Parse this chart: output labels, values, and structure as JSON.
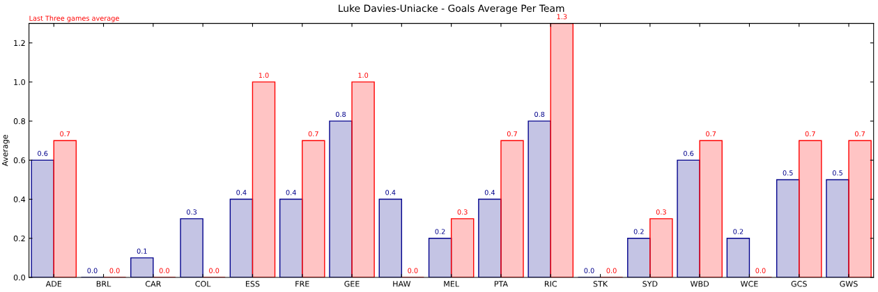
{
  "chart_data": {
    "type": "bar",
    "title": "Luke Davies-Uniacke - Goals Average Per Team",
    "ylabel": "Average",
    "categories": [
      "ADE",
      "BRL",
      "CAR",
      "COL",
      "ESS",
      "FRE",
      "GEE",
      "HAW",
      "MEL",
      "PTA",
      "RIC",
      "STK",
      "SYD",
      "WBD",
      "WCE",
      "GCS",
      "GWS"
    ],
    "series": [
      {
        "color": "#00008b",
        "values": [
          0.6,
          0.0,
          0.1,
          0.3,
          0.4,
          0.4,
          0.8,
          0.4,
          0.2,
          0.4,
          0.8,
          0.0,
          0.2,
          0.6,
          0.2,
          0.5,
          0.5
        ],
        "value_labels": [
          "0.6",
          "0.0",
          "0.1",
          "0.3",
          "0.4",
          "0.4",
          "0.8",
          "0.4",
          "0.2",
          "0.4",
          "0.8",
          "0.0",
          "0.2",
          "0.6",
          "0.2",
          "0.5",
          "0.5"
        ]
      },
      {
        "name": "Last Three games average",
        "color": "#ff0000",
        "values": [
          0.7,
          0.0,
          0.0,
          0.0,
          1.0,
          0.7,
          1.0,
          0.0,
          0.3,
          0.7,
          1.3,
          0.0,
          0.3,
          0.7,
          0.0,
          0.7,
          0.7
        ],
        "value_labels": [
          "0.7",
          "0.0",
          "0.0",
          "0.0",
          "1.0",
          "0.7",
          "1.0",
          "0.0",
          "0.3",
          "0.7",
          "1.3",
          "0.0",
          "0.3",
          "0.7",
          "0.0",
          "0.7",
          "0.7"
        ]
      }
    ],
    "ylim": [
      0,
      1.3
    ],
    "yticks": [
      {
        "value": 0,
        "label": "0.0"
      },
      {
        "value": 0.2,
        "label": "0.2"
      },
      {
        "value": 0.4,
        "label": "0.4"
      },
      {
        "value": 0.6,
        "label": "0.6"
      },
      {
        "value": 0.8,
        "label": "0.8"
      },
      {
        "value": 1.0,
        "label": "1.0"
      },
      {
        "value": 1.2,
        "label": "1.2"
      }
    ],
    "grid": false,
    "legend": "top left"
  }
}
